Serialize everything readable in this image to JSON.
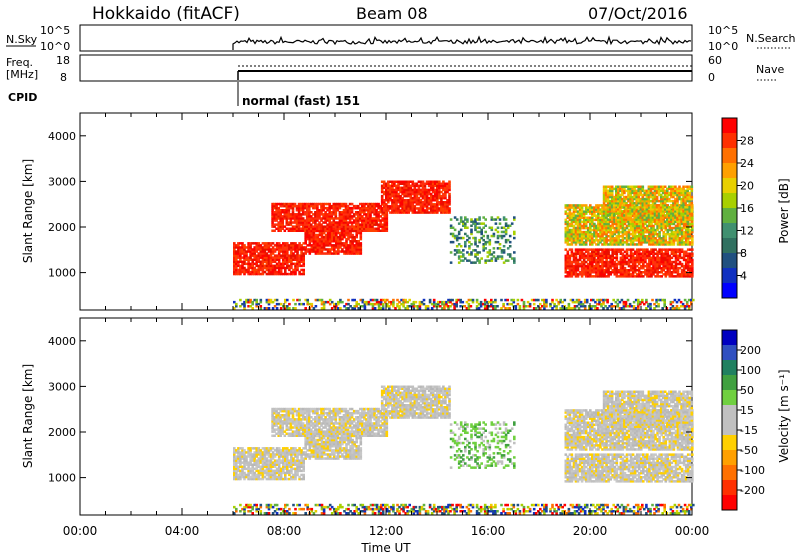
{
  "header": {
    "station": "Hokkaido (fitACF)",
    "beam": "Beam 08",
    "date": "07/Oct/2016"
  },
  "noise_panel": {
    "left_label": "N.Sky",
    "right_label": "N.Search",
    "ticks": [
      "10^5",
      "10^0"
    ]
  },
  "freq_panel": {
    "left_label_1": "Freq.",
    "left_label_2": "[MHz]",
    "left_ticks": [
      "18",
      "8"
    ],
    "right_label": "Nave",
    "right_ticks": [
      "60",
      "0"
    ]
  },
  "cpid": {
    "label": "CPID",
    "mode_text": "normal (fast) 151"
  },
  "chart_data": [
    {
      "type": "heatmap",
      "name": "power",
      "ylabel": "Slant Range [km]",
      "xlabel": "",
      "colorbar_label": "Power [dB]",
      "colorbar_ticks": [
        "28",
        "24",
        "20",
        "16",
        "12",
        "8",
        "4"
      ],
      "colorbar_colors": [
        "#ff0000",
        "#ff3000",
        "#ff7000",
        "#ffa000",
        "#e8d000",
        "#a8d000",
        "#60b040",
        "#409070",
        "#307060",
        "#205080",
        "#1030c0",
        "#0000ff"
      ],
      "yticks": [
        "4000",
        "3000",
        "2000",
        "1000"
      ],
      "ylim": [
        180,
        4500
      ],
      "data_start_hour": 6,
      "bands": [
        {
          "t0": 6.0,
          "t1": 8.8,
          "r0": 950,
          "r1": 1650,
          "level": "high"
        },
        {
          "t0": 8.8,
          "t1": 11.0,
          "r0": 1400,
          "r1": 2000,
          "level": "high"
        },
        {
          "t0": 7.5,
          "t1": 12.0,
          "r0": 1900,
          "r1": 2500,
          "level": "high"
        },
        {
          "t0": 11.8,
          "t1": 14.5,
          "r0": 2300,
          "r1": 3000,
          "level": "high"
        },
        {
          "t0": 19.0,
          "t1": 24.0,
          "r0": 900,
          "r1": 1500,
          "level": "high"
        },
        {
          "t0": 19.0,
          "t1": 24.0,
          "r0": 1600,
          "r1": 2500,
          "level": "mid"
        },
        {
          "t0": 20.5,
          "t1": 24.0,
          "r0": 2100,
          "r1": 2900,
          "level": "mid"
        },
        {
          "t0": 14.5,
          "t1": 17.0,
          "r0": 1200,
          "r1": 2200,
          "level": "low"
        },
        {
          "t0": 6.0,
          "t1": 24.0,
          "r0": 200,
          "r1": 400,
          "level": "mixed"
        }
      ]
    },
    {
      "type": "heatmap",
      "name": "velocity",
      "ylabel": "Slant Range [km]",
      "xlabel": "Time UT",
      "colorbar_label": "Velocity [m s⁻¹]",
      "colorbar_ticks": [
        "200",
        "100",
        "50",
        "15",
        "-15",
        "-50",
        "-100",
        "-200"
      ],
      "colorbar_colors": [
        "#0000c0",
        "#3050c0",
        "#208060",
        "#40a040",
        "#70d040",
        "#c0c0c0",
        "#c0c0c0",
        "#ffd000",
        "#ffa000",
        "#ff7000",
        "#ff3000",
        "#ff0000"
      ],
      "yticks": [
        "4000",
        "3000",
        "2000",
        "1000"
      ],
      "ylim": [
        180,
        4500
      ],
      "xticks": [
        "00:00",
        "04:00",
        "08:00",
        "12:00",
        "16:00",
        "20:00",
        "00:00"
      ],
      "xlim": [
        0,
        24
      ]
    }
  ]
}
